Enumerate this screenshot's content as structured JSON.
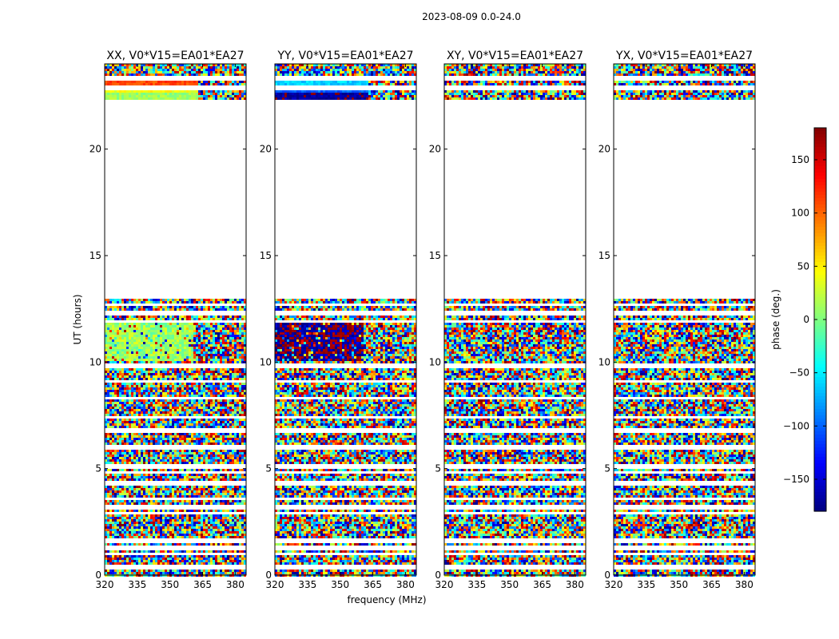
{
  "figure": {
    "suptitle": "2023-08-09 0.0-24.0"
  },
  "chart_data": {
    "type": "heatmap",
    "xlabel": "frequency (MHz)",
    "ylabel": "UT (hours)",
    "xlim": [
      320,
      385
    ],
    "ylim": [
      0,
      24
    ],
    "x_ticks": [
      320,
      335,
      350,
      365,
      380
    ],
    "y_ticks": [
      0,
      5,
      10,
      15,
      20
    ],
    "panels": [
      {
        "title": "XX, V0*V15=EA01*EA27",
        "dominant_phase": 10,
        "coherent_hours": [
          [
            10.0,
            11.8
          ],
          [
            22.3,
            23.2
          ]
        ],
        "band_phases": [
          [
            22.3,
            22.6,
            10
          ],
          [
            22.6,
            22.9,
            40
          ],
          [
            22.9,
            23.2,
            110
          ]
        ]
      },
      {
        "title": "YY, V0*V15=EA01*EA27",
        "dominant_phase": -175,
        "coherent_hours": [
          [
            10.0,
            11.8
          ],
          [
            22.3,
            23.2
          ]
        ],
        "band_phases": [
          [
            22.3,
            22.6,
            -170
          ],
          [
            22.6,
            22.9,
            -100
          ],
          [
            22.9,
            23.2,
            -60
          ]
        ]
      },
      {
        "title": "XY, V0*V15=EA01*EA27",
        "dominant_phase": null,
        "coherent_hours": [],
        "band_phases": []
      },
      {
        "title": "YX, V0*V15=EA01*EA27",
        "dominant_phase": null,
        "coherent_hours": [],
        "band_phases": []
      }
    ],
    "empty_hours": [
      [
        13.0,
        22.3
      ]
    ],
    "flagged_rows_hours": [
      0.4,
      1.0,
      1.3,
      1.6,
      2.9,
      3.2,
      3.6,
      4.3,
      4.8,
      5.1,
      6.0,
      6.8,
      7.4,
      8.3,
      9.1,
      9.8,
      11.9,
      12.3,
      12.7,
      22.9,
      23.3
    ],
    "colorbar": {
      "label": "phase (deg.)",
      "range": [
        -180,
        180
      ],
      "ticks": [
        150,
        100,
        50,
        0,
        -50,
        -100,
        -150
      ],
      "tick_labels": [
        "150",
        "100",
        "50",
        "0",
        "−50",
        "−100",
        "−150"
      ],
      "colormap": "jet"
    },
    "grid": false
  }
}
